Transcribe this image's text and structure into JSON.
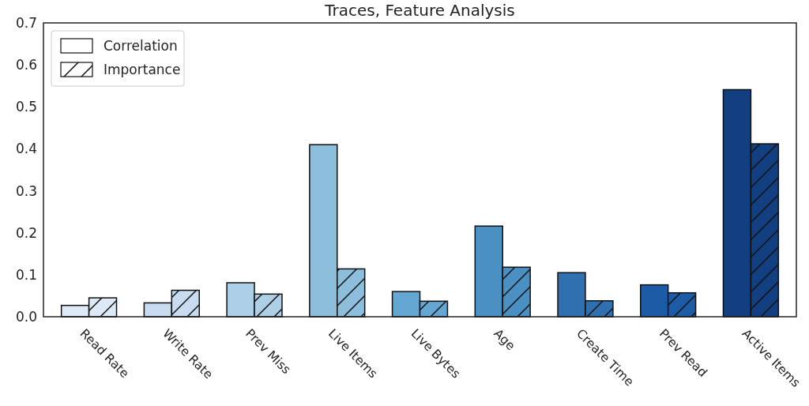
{
  "chart_data": {
    "type": "bar",
    "title": "Traces, Feature Analysis",
    "categories": [
      "Read Rate",
      "Write Rate",
      "Prev Miss",
      "Live Items",
      "Live Bytes",
      "Age",
      "Create Time",
      "Prev Read",
      "Active Items"
    ],
    "series": [
      {
        "name": "Correlation",
        "color": "#ffffff",
        "colors": [
          "#dde9f6",
          "#c9dcef",
          "#aed0e6",
          "#8dbfdc",
          "#63a7d2",
          "#4a90c3",
          "#2f70b0",
          "#1c5ba6",
          "#123f80"
        ],
        "values": [
          0.027,
          0.033,
          0.081,
          0.41,
          0.06,
          0.216,
          0.105,
          0.076,
          0.541
        ]
      },
      {
        "name": "Importance",
        "color": "#ffffff",
        "colors": [
          "#dde9f6",
          "#c9dcef",
          "#aed0e6",
          "#8dbfdc",
          "#63a7d2",
          "#4a90c3",
          "#2f70b0",
          "#1c5ba6",
          "#123f80"
        ],
        "values": [
          0.045,
          0.063,
          0.054,
          0.114,
          0.037,
          0.118,
          0.038,
          0.057,
          0.412
        ]
      }
    ],
    "ylim": [
      0,
      0.7
    ],
    "yticks": [
      {
        "value": 0,
        "label": "0.0"
      },
      0.1,
      0.2,
      0.3,
      0.4,
      0.5,
      0.6,
      0.7
    ],
    "grid": false,
    "legend": "top left"
  }
}
